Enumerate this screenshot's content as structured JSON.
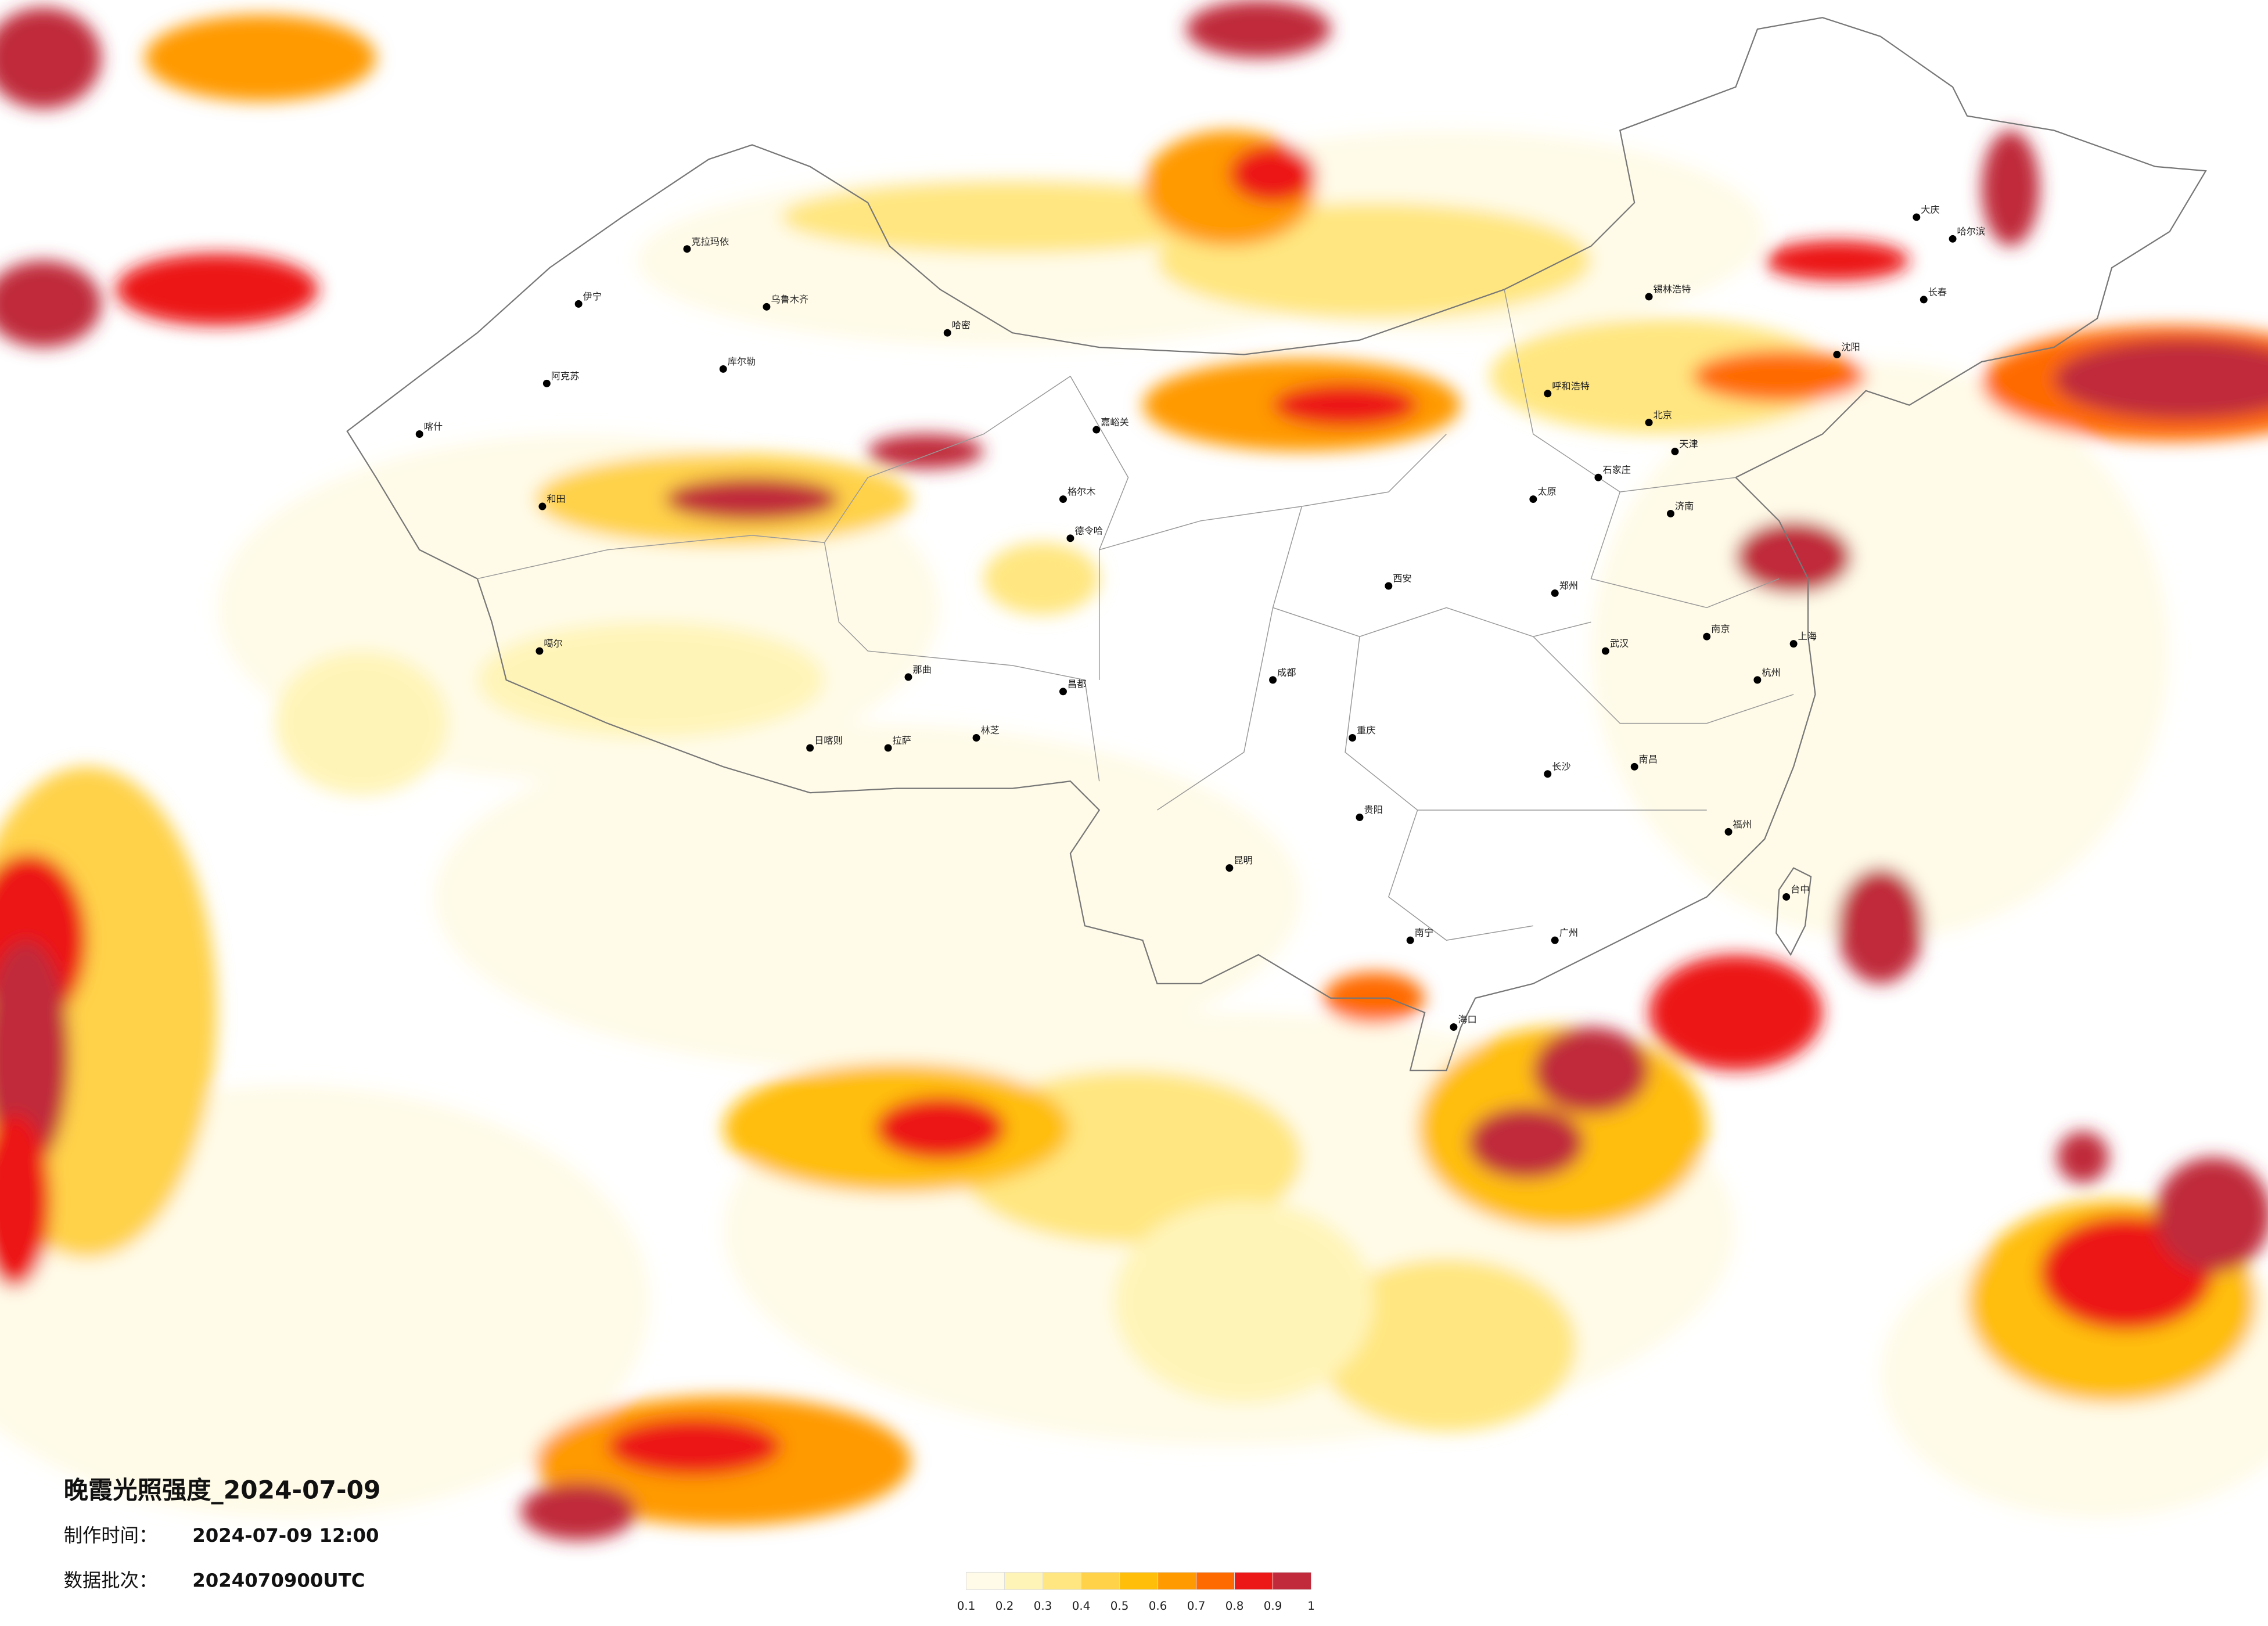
{
  "header": {
    "title": "晚霞光照强度_2024-07-09",
    "made_label": "制作时间：",
    "made_time": "2024-07-09 12:00",
    "batch_label": "数据批次：",
    "batch": "2024070900UTC"
  },
  "legend": {
    "ticks": [
      0.1,
      0.2,
      0.3,
      0.4,
      0.5,
      0.6,
      0.7,
      0.8,
      0.9,
      1
    ],
    "colors": [
      "#fffbe8",
      "#fff4b8",
      "#ffe680",
      "#ffd24a",
      "#ffbe0a",
      "#ff9a00",
      "#ff6a00",
      "#ec1818",
      "#c02a3a"
    ]
  },
  "cities": [
    "克拉玛依",
    "乌鲁木齐",
    "伊宁",
    "阿克苏",
    "喀什",
    "和田",
    "库尔勒",
    "哈密",
    "嘉峪关",
    "格尔木",
    "德令哈",
    "噶尔",
    "日喀则",
    "拉萨",
    "林芝",
    "那曲",
    "昌都",
    "呼和浩特",
    "北京",
    "天津",
    "石家庄",
    "太原",
    "郑州",
    "西安",
    "成都",
    "重庆",
    "贵阳",
    "昆明",
    "南宁",
    "广州",
    "武汉",
    "长沙",
    "南昌",
    "杭州",
    "上海",
    "南京",
    "济南",
    "沈阳",
    "长春",
    "哈尔滨",
    "大庆",
    "锡林浩特",
    "海口",
    "福州",
    "台中"
  ]
}
